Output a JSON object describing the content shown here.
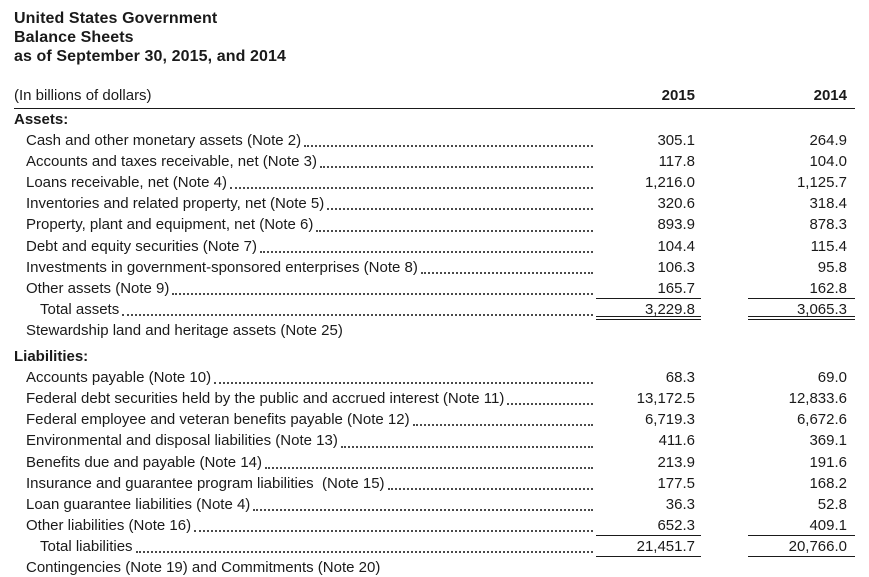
{
  "document": {
    "title_line1": "United States Government",
    "title_line2": "Balance Sheets",
    "title_line3": "as of September 30, 2015, and 2014"
  },
  "table": {
    "unit_label": "(In billions of dollars)",
    "columns": {
      "year1": "2015",
      "year2": "2014"
    }
  },
  "rows": [
    {
      "label": "Assets:",
      "v2015": "",
      "v2014": "",
      "type": "section",
      "leader": false,
      "rule": "none",
      "gap_above": false
    },
    {
      "label": "Cash and other monetary assets (Note 2)",
      "v2015": "305.1",
      "v2014": "264.9",
      "type": "item",
      "leader": true,
      "rule": "none",
      "gap_above": false
    },
    {
      "label": "Accounts and taxes receivable, net (Note 3)",
      "v2015": "117.8",
      "v2014": "104.0",
      "type": "item",
      "leader": true,
      "rule": "none",
      "gap_above": false
    },
    {
      "label": "Loans receivable, net (Note 4)",
      "v2015": "1,216.0",
      "v2014": "1,125.7",
      "type": "item",
      "leader": true,
      "rule": "none",
      "gap_above": false
    },
    {
      "label": "Inventories and related property, net (Note 5)",
      "v2015": "320.6",
      "v2014": "318.4",
      "type": "item",
      "leader": true,
      "rule": "none",
      "gap_above": false
    },
    {
      "label": "Property, plant and equipment, net (Note 6)",
      "v2015": "893.9",
      "v2014": "878.3",
      "type": "item",
      "leader": true,
      "rule": "none",
      "gap_above": false
    },
    {
      "label": "Debt and equity securities (Note 7)",
      "v2015": "104.4",
      "v2014": "115.4",
      "type": "item",
      "leader": true,
      "rule": "none",
      "gap_above": false
    },
    {
      "label": "Investments in government-sponsored enterprises (Note 8)",
      "v2015": "106.3",
      "v2014": "95.8",
      "type": "item",
      "leader": true,
      "rule": "none",
      "gap_above": false
    },
    {
      "label": "Other assets (Note 9)",
      "v2015": "165.7",
      "v2014": "162.8",
      "type": "item",
      "leader": true,
      "rule": "single",
      "gap_above": false
    },
    {
      "label": "Total assets",
      "v2015": "3,229.8",
      "v2014": "3,065.3",
      "type": "total",
      "leader": true,
      "rule": "double",
      "gap_above": false
    },
    {
      "label": "Stewardship land and heritage assets (Note 25)",
      "v2015": "",
      "v2014": "",
      "type": "item",
      "leader": false,
      "rule": "none",
      "gap_above": false
    },
    {
      "label": "Liabilities:",
      "v2015": "",
      "v2014": "",
      "type": "section",
      "leader": false,
      "rule": "none",
      "gap_above": true
    },
    {
      "label": "Accounts payable (Note 10)",
      "v2015": "68.3",
      "v2014": "69.0",
      "type": "item",
      "leader": true,
      "rule": "none",
      "gap_above": false
    },
    {
      "label": "Federal debt securities held by the public and accrued interest (Note 11)",
      "v2015": "13,172.5",
      "v2014": "12,833.6",
      "type": "item",
      "leader": true,
      "rule": "none",
      "gap_above": false
    },
    {
      "label": "Federal employee and veteran benefits payable (Note 12)",
      "v2015": "6,719.3",
      "v2014": "6,672.6",
      "type": "item",
      "leader": true,
      "rule": "none",
      "gap_above": false
    },
    {
      "label": "Environmental and disposal liabilities (Note 13)",
      "v2015": "411.6",
      "v2014": "369.1",
      "type": "item",
      "leader": true,
      "rule": "none",
      "gap_above": false
    },
    {
      "label": "Benefits due and payable (Note 14)",
      "v2015": "213.9",
      "v2014": "191.6",
      "type": "item",
      "leader": true,
      "rule": "none",
      "gap_above": false
    },
    {
      "label": "Insurance and guarantee program liabilities  (Note 15)",
      "v2015": "177.5",
      "v2014": "168.2",
      "type": "item",
      "leader": true,
      "rule": "none",
      "gap_above": false
    },
    {
      "label": "Loan guarantee liabilities (Note 4)",
      "v2015": "36.3",
      "v2014": "52.8",
      "type": "item",
      "leader": true,
      "rule": "none",
      "gap_above": false
    },
    {
      "label": "Other liabilities (Note 16)",
      "v2015": "652.3",
      "v2014": "409.1",
      "type": "item",
      "leader": true,
      "rule": "single",
      "gap_above": false
    },
    {
      "label": "Total liabilities",
      "v2015": "21,451.7",
      "v2014": "20,766.0",
      "type": "total",
      "leader": true,
      "rule": "single",
      "gap_above": false
    },
    {
      "label": "Contingencies (Note 19) and Commitments (Note 20)",
      "v2015": "",
      "v2014": "",
      "type": "item",
      "leader": false,
      "rule": "none",
      "gap_above": false
    }
  ]
}
